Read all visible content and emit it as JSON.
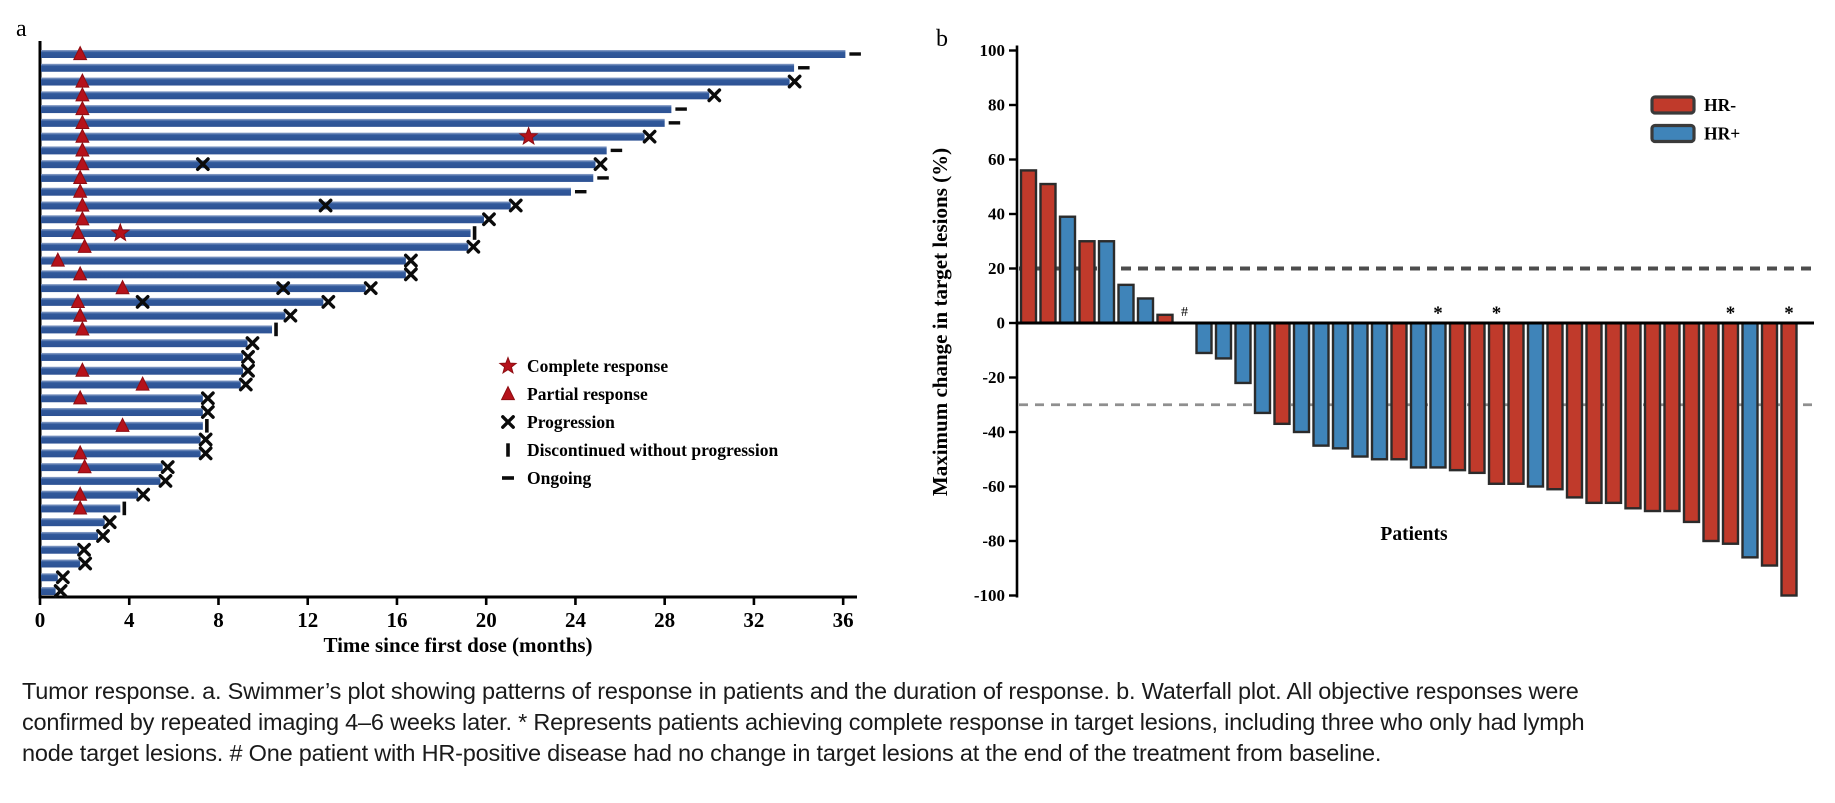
{
  "figure": {
    "background": "#ffffff",
    "caption_lines": [
      "Tumor response. a. Swimmer’s plot showing patterns of response in patients and the duration of response. b. Waterfall plot. All objective responses were",
      "confirmed by repeated imaging 4–6 weeks later. * Represents patients achieving complete response in target lesions, including three who only had lymph",
      "node target lesions. # One patient with HR-positive disease had no change in target lesions at the end of the treatment from baseline."
    ]
  },
  "chart_data": [
    {
      "type": "swimmer",
      "panel_label": "a",
      "xlabel": "Time since first dose (months)",
      "xlim": [
        0,
        36
      ],
      "xticks": [
        0,
        4,
        8,
        12,
        16,
        20,
        24,
        28,
        32,
        36
      ],
      "bar_color": "#31599b",
      "bar_color_light": "#93a7cc",
      "response_marker_color": "#b5121b",
      "event_marker_color": "#0b0b0b",
      "legend": [
        {
          "marker": "star",
          "label": "Complete response"
        },
        {
          "marker": "triangle",
          "label": "Partial response"
        },
        {
          "marker": "x",
          "label": "Progression"
        },
        {
          "marker": "bar",
          "label": "Discontinued without progression"
        },
        {
          "marker": "dash",
          "label": "Ongoing"
        }
      ],
      "patients": [
        {
          "duration": 36.1,
          "end": "ongoing",
          "partial_response_at": 1.8
        },
        {
          "duration": 33.8,
          "end": "ongoing"
        },
        {
          "duration": 33.6,
          "end": "progression",
          "partial_response_at": 1.9
        },
        {
          "duration": 30.0,
          "end": "progression",
          "partial_response_at": 1.9
        },
        {
          "duration": 28.3,
          "end": "ongoing",
          "partial_response_at": 1.9
        },
        {
          "duration": 28.0,
          "end": "ongoing",
          "partial_response_at": 1.9
        },
        {
          "duration": 27.1,
          "end": "progression",
          "partial_response_at": 1.9,
          "complete_response_at": 21.9
        },
        {
          "duration": 25.4,
          "end": "ongoing",
          "partial_response_at": 1.9
        },
        {
          "duration": 24.9,
          "end": "progression",
          "partial_response_at": 1.9,
          "x_marker_months": [
            7.3
          ]
        },
        {
          "duration": 24.8,
          "end": "ongoing",
          "partial_response_at": 1.8
        },
        {
          "duration": 23.8,
          "end": "ongoing",
          "partial_response_at": 1.8
        },
        {
          "duration": 21.1,
          "end": "progression",
          "partial_response_at": 1.9,
          "x_marker_months": [
            12.8
          ]
        },
        {
          "duration": 19.9,
          "end": "progression",
          "partial_response_at": 1.9
        },
        {
          "duration": 19.3,
          "end": "discontinued",
          "partial_response_at": 1.7,
          "complete_response_at": 3.6
        },
        {
          "duration": 19.2,
          "end": "progression",
          "partial_response_at": 2.0
        },
        {
          "duration": 16.4,
          "end": "progression",
          "partial_response_at": 0.8
        },
        {
          "duration": 16.4,
          "end": "progression",
          "partial_response_at": 1.8
        },
        {
          "duration": 14.6,
          "end": "progression",
          "partial_response_at": 3.7,
          "x_marker_months": [
            10.9
          ]
        },
        {
          "duration": 12.7,
          "end": "progression",
          "partial_response_at": 1.7,
          "x_marker_months": [
            4.6
          ]
        },
        {
          "duration": 11.0,
          "end": "progression",
          "partial_response_at": 1.8
        },
        {
          "duration": 10.4,
          "end": "discontinued",
          "partial_response_at": 1.9
        },
        {
          "duration": 9.3,
          "end": "progression"
        },
        {
          "duration": 9.1,
          "end": "progression"
        },
        {
          "duration": 9.1,
          "end": "progression",
          "partial_response_at": 1.9
        },
        {
          "duration": 9.0,
          "end": "progression",
          "partial_response_at": 4.6
        },
        {
          "duration": 7.3,
          "end": "progression",
          "partial_response_at": 1.8
        },
        {
          "duration": 7.3,
          "end": "progression"
        },
        {
          "duration": 7.3,
          "end": "discontinued",
          "partial_response_at": 3.7
        },
        {
          "duration": 7.2,
          "end": "progression"
        },
        {
          "duration": 7.2,
          "end": "progression",
          "partial_response_at": 1.8
        },
        {
          "duration": 5.5,
          "end": "progression",
          "partial_response_at": 2.0
        },
        {
          "duration": 5.4,
          "end": "progression"
        },
        {
          "duration": 4.4,
          "end": "progression",
          "partial_response_at": 1.8
        },
        {
          "duration": 3.6,
          "end": "discontinued",
          "partial_response_at": 1.8
        },
        {
          "duration": 2.9,
          "end": "progression"
        },
        {
          "duration": 2.6,
          "end": "progression"
        },
        {
          "duration": 1.75,
          "end": "progression"
        },
        {
          "duration": 1.8,
          "end": "progression"
        },
        {
          "duration": 0.8,
          "end": "progression"
        },
        {
          "duration": 0.7,
          "end": "progression"
        }
      ]
    },
    {
      "type": "waterfall",
      "panel_label": "b",
      "ylabel": "Maximum change in target lesions (%)",
      "xlabel": "Patients",
      "ylim": [
        -100,
        100
      ],
      "yticks": [
        100,
        80,
        60,
        40,
        20,
        0,
        -20,
        -40,
        -60,
        -80,
        -100
      ],
      "reference_lines": [
        {
          "y": 20,
          "style": "dashed",
          "color": "#4d4d4d"
        },
        {
          "y": -30,
          "style": "dashed",
          "color": "#8f8f8f"
        }
      ],
      "groups": {
        "HR-": "#c03a2b",
        "HR+": "#3f84b9"
      },
      "bar_outline": "#2b2b2b",
      "legend": [
        {
          "label": "HR-",
          "color": "#c03a2b"
        },
        {
          "label": "HR+",
          "color": "#3f84b9"
        }
      ],
      "patients": [
        {
          "value": 56,
          "group": "HR-"
        },
        {
          "value": 51,
          "group": "HR-"
        },
        {
          "value": 39,
          "group": "HR+"
        },
        {
          "value": 30,
          "group": "HR-"
        },
        {
          "value": 30,
          "group": "HR+"
        },
        {
          "value": 14,
          "group": "HR+"
        },
        {
          "value": 9,
          "group": "HR+"
        },
        {
          "value": 3,
          "group": "HR-"
        },
        {
          "value": 0,
          "group": "HR+",
          "annotation": "#"
        },
        {
          "value": -11,
          "group": "HR+"
        },
        {
          "value": -13,
          "group": "HR+"
        },
        {
          "value": -22,
          "group": "HR+"
        },
        {
          "value": -33,
          "group": "HR+"
        },
        {
          "value": -37,
          "group": "HR-"
        },
        {
          "value": -40,
          "group": "HR+"
        },
        {
          "value": -45,
          "group": "HR+"
        },
        {
          "value": -46,
          "group": "HR+"
        },
        {
          "value": -49,
          "group": "HR+"
        },
        {
          "value": -50,
          "group": "HR+"
        },
        {
          "value": -50,
          "group": "HR-"
        },
        {
          "value": -53,
          "group": "HR+"
        },
        {
          "value": -53,
          "group": "HR+",
          "annotation": "*"
        },
        {
          "value": -54,
          "group": "HR-"
        },
        {
          "value": -55,
          "group": "HR-"
        },
        {
          "value": -59,
          "group": "HR-",
          "annotation": "*"
        },
        {
          "value": -59,
          "group": "HR-"
        },
        {
          "value": -60,
          "group": "HR+"
        },
        {
          "value": -61,
          "group": "HR-"
        },
        {
          "value": -64,
          "group": "HR-"
        },
        {
          "value": -66,
          "group": "HR-"
        },
        {
          "value": -66,
          "group": "HR-"
        },
        {
          "value": -68,
          "group": "HR-"
        },
        {
          "value": -69,
          "group": "HR-"
        },
        {
          "value": -69,
          "group": "HR-"
        },
        {
          "value": -73,
          "group": "HR-"
        },
        {
          "value": -80,
          "group": "HR-"
        },
        {
          "value": -81,
          "group": "HR-",
          "annotation": "*"
        },
        {
          "value": -86,
          "group": "HR+"
        },
        {
          "value": -89,
          "group": "HR-"
        },
        {
          "value": -100,
          "group": "HR-",
          "annotation": "*"
        }
      ]
    }
  ]
}
